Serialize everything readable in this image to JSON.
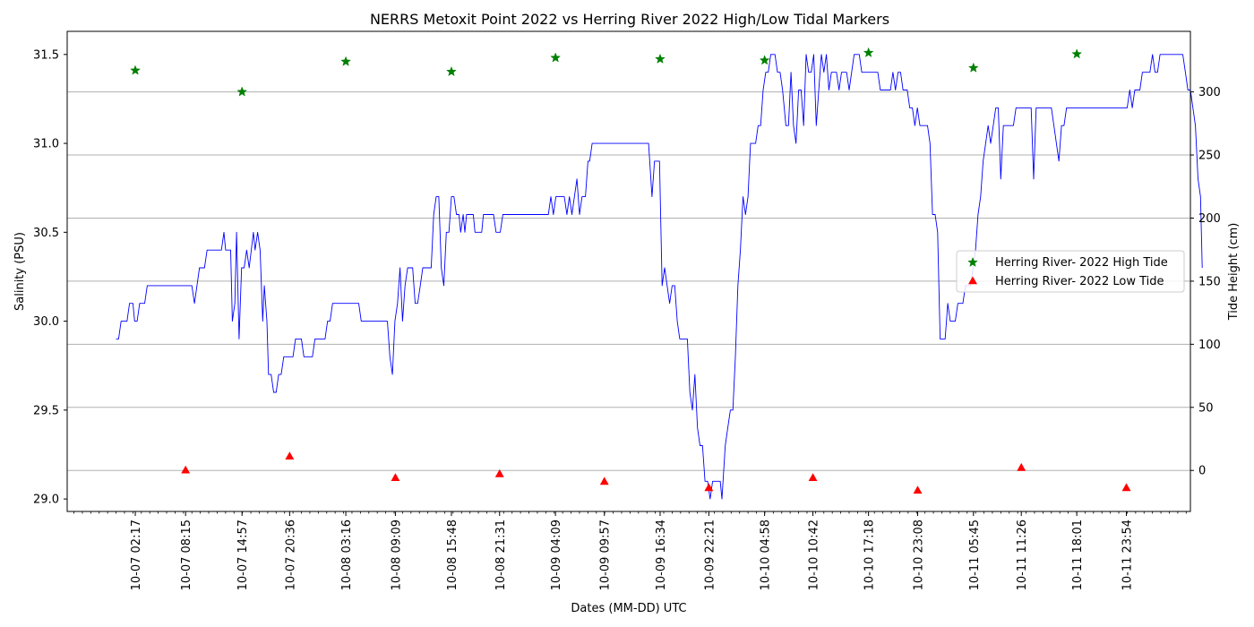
{
  "chart_data": {
    "type": "line",
    "title": "NERRS Metoxit Point 2022 vs Herring River 2022 High/Low Tidal Markers",
    "xlabel": "Dates (MM-DD) UTC",
    "ylabel_left": "Salinity (PSU)",
    "ylabel_right": "Tide Height (cm)",
    "x_ticks": [
      "10-07 02:17",
      "10-07 08:15",
      "10-07 14:57",
      "10-07 20:36",
      "10-08 03:16",
      "10-08 09:09",
      "10-08 15:48",
      "10-08 21:31",
      "10-09 04:09",
      "10-09 09:57",
      "10-09 16:34",
      "10-09 22:21",
      "10-10 04:58",
      "10-10 10:42",
      "10-10 17:18",
      "10-10 23:08",
      "10-11 05:45",
      "10-11 11:26",
      "10-11 18:01",
      "10-11 23:54"
    ],
    "x_tick_hours": [
      2.283,
      8.25,
      14.95,
      20.6,
      27.267,
      33.15,
      39.8,
      45.517,
      52.15,
      57.95,
      64.567,
      70.35,
      76.967,
      82.7,
      89.3,
      95.133,
      101.75,
      107.433,
      114.017,
      119.9
    ],
    "x_range_hours": [
      -5.8,
      127.5
    ],
    "x_origin_label": "10-07 00:00",
    "y_left_ticks": [
      29.0,
      29.5,
      30.0,
      30.5,
      31.0,
      31.5
    ],
    "y_left_range": [
      28.93,
      31.63
    ],
    "y_right_ticks": [
      0,
      50,
      100,
      150,
      200,
      250,
      300
    ],
    "y_right_range": [
      -32.5,
      348
    ],
    "grid": "right-axis horizontal",
    "legend_position": "right",
    "salinity_color": "#0000ff",
    "high_color": "#008000",
    "low_color": "#ff0000",
    "series": [
      {
        "name": "",
        "axis": "left",
        "points": [
          [
            0.0,
            29.9
          ],
          [
            0.3,
            29.9
          ],
          [
            0.6,
            30.0
          ],
          [
            1.3,
            30.0
          ],
          [
            1.6,
            30.1
          ],
          [
            2.0,
            30.1
          ],
          [
            2.2,
            30.0
          ],
          [
            2.5,
            30.0
          ],
          [
            2.8,
            30.1
          ],
          [
            3.4,
            30.1
          ],
          [
            3.7,
            30.2
          ],
          [
            7.0,
            30.2
          ],
          [
            8.5,
            30.2
          ],
          [
            9.0,
            30.2
          ],
          [
            9.3,
            30.1
          ],
          [
            9.6,
            30.2
          ],
          [
            9.9,
            30.3
          ],
          [
            10.5,
            30.3
          ],
          [
            10.8,
            30.4
          ],
          [
            12.5,
            30.4
          ],
          [
            12.8,
            30.5
          ],
          [
            13.0,
            30.4
          ],
          [
            13.6,
            30.4
          ],
          [
            13.8,
            30.0
          ],
          [
            14.1,
            30.1
          ],
          [
            14.3,
            30.5
          ],
          [
            14.6,
            29.9
          ],
          [
            14.9,
            30.3
          ],
          [
            15.2,
            30.3
          ],
          [
            15.5,
            30.4
          ],
          [
            15.8,
            30.3
          ],
          [
            16.3,
            30.5
          ],
          [
            16.5,
            30.4
          ],
          [
            16.8,
            30.5
          ],
          [
            17.1,
            30.4
          ],
          [
            17.4,
            30.0
          ],
          [
            17.6,
            30.2
          ],
          [
            17.9,
            30.0
          ],
          [
            18.1,
            29.7
          ],
          [
            18.4,
            29.7
          ],
          [
            18.7,
            29.6
          ],
          [
            19.0,
            29.6
          ],
          [
            19.3,
            29.7
          ],
          [
            19.6,
            29.7
          ],
          [
            19.9,
            29.8
          ],
          [
            21.0,
            29.8
          ],
          [
            21.3,
            29.9
          ],
          [
            22.0,
            29.9
          ],
          [
            22.3,
            29.8
          ],
          [
            23.3,
            29.8
          ],
          [
            23.6,
            29.9
          ],
          [
            24.8,
            29.9
          ],
          [
            25.1,
            30.0
          ],
          [
            25.4,
            30.0
          ],
          [
            25.7,
            30.1
          ],
          [
            28.8,
            30.1
          ],
          [
            29.1,
            30.0
          ],
          [
            31.4,
            30.0
          ],
          [
            32.2,
            30.0
          ],
          [
            32.5,
            29.8
          ],
          [
            32.8,
            29.7
          ],
          [
            33.1,
            30.0
          ],
          [
            33.4,
            30.1
          ],
          [
            33.7,
            30.3
          ],
          [
            34.0,
            30.0
          ],
          [
            34.3,
            30.2
          ],
          [
            34.6,
            30.3
          ],
          [
            35.2,
            30.3
          ],
          [
            35.5,
            30.1
          ],
          [
            35.8,
            30.1
          ],
          [
            36.1,
            30.2
          ],
          [
            36.4,
            30.3
          ],
          [
            37.4,
            30.3
          ],
          [
            37.7,
            30.6
          ],
          [
            38.0,
            30.7
          ],
          [
            38.3,
            30.7
          ],
          [
            38.6,
            30.3
          ],
          [
            38.9,
            30.2
          ],
          [
            39.2,
            30.5
          ],
          [
            39.5,
            30.5
          ],
          [
            39.8,
            30.7
          ],
          [
            40.1,
            30.7
          ],
          [
            40.4,
            30.6
          ],
          [
            40.7,
            30.6
          ],
          [
            40.9,
            30.5
          ],
          [
            41.2,
            30.6
          ],
          [
            41.4,
            30.5
          ],
          [
            41.6,
            30.6
          ],
          [
            42.4,
            30.6
          ],
          [
            42.6,
            30.5
          ],
          [
            43.4,
            30.5
          ],
          [
            43.6,
            30.6
          ],
          [
            44.8,
            30.6
          ],
          [
            45.1,
            30.5
          ],
          [
            45.6,
            30.5
          ],
          [
            45.9,
            30.6
          ],
          [
            51.3,
            30.6
          ],
          [
            51.6,
            30.7
          ],
          [
            51.9,
            30.6
          ],
          [
            52.2,
            30.7
          ],
          [
            53.2,
            30.7
          ],
          [
            53.5,
            30.6
          ],
          [
            53.8,
            30.7
          ],
          [
            54.1,
            30.6
          ],
          [
            54.4,
            30.7
          ],
          [
            54.7,
            30.8
          ],
          [
            55.0,
            30.6
          ],
          [
            55.3,
            30.7
          ],
          [
            55.7,
            30.7
          ],
          [
            56.0,
            30.9
          ],
          [
            56.2,
            30.9
          ],
          [
            56.5,
            31.0
          ],
          [
            63.2,
            31.0
          ],
          [
            63.6,
            30.7
          ],
          [
            63.9,
            30.9
          ],
          [
            64.5,
            30.9
          ],
          [
            64.8,
            30.2
          ],
          [
            65.1,
            30.3
          ],
          [
            65.4,
            30.2
          ],
          [
            65.7,
            30.1
          ],
          [
            66.0,
            30.2
          ],
          [
            66.3,
            30.2
          ],
          [
            66.6,
            30.0
          ],
          [
            66.9,
            29.9
          ],
          [
            67.8,
            29.9
          ],
          [
            68.1,
            29.6
          ],
          [
            68.4,
            29.5
          ],
          [
            68.7,
            29.7
          ],
          [
            69.0,
            29.4
          ],
          [
            69.3,
            29.3
          ],
          [
            69.6,
            29.3
          ],
          [
            69.9,
            29.1
          ],
          [
            70.2,
            29.1
          ],
          [
            70.5,
            29.0
          ],
          [
            70.8,
            29.1
          ],
          [
            71.7,
            29.1
          ],
          [
            71.9,
            29.0
          ],
          [
            72.3,
            29.3
          ],
          [
            72.6,
            29.4
          ],
          [
            72.9,
            29.5
          ],
          [
            73.2,
            29.5
          ],
          [
            73.5,
            29.8
          ],
          [
            73.8,
            30.2
          ],
          [
            74.1,
            30.4
          ],
          [
            74.4,
            30.7
          ],
          [
            74.7,
            30.6
          ],
          [
            75.0,
            30.7
          ],
          [
            75.3,
            31.0
          ],
          [
            75.9,
            31.0
          ],
          [
            76.2,
            31.1
          ],
          [
            76.5,
            31.1
          ],
          [
            76.8,
            31.3
          ],
          [
            77.1,
            31.4
          ],
          [
            77.4,
            31.4
          ],
          [
            77.7,
            31.5
          ],
          [
            78.2,
            31.5
          ],
          [
            78.5,
            31.4
          ],
          [
            78.8,
            31.4
          ],
          [
            79.1,
            31.3
          ],
          [
            79.5,
            31.1
          ],
          [
            79.8,
            31.1
          ],
          [
            80.1,
            31.4
          ],
          [
            80.4,
            31.1
          ],
          [
            80.7,
            31.0
          ],
          [
            81.0,
            31.3
          ],
          [
            81.3,
            31.3
          ],
          [
            81.6,
            31.1
          ],
          [
            81.9,
            31.5
          ],
          [
            82.2,
            31.4
          ],
          [
            82.5,
            31.4
          ],
          [
            82.8,
            31.5
          ],
          [
            83.1,
            31.1
          ],
          [
            83.4,
            31.3
          ],
          [
            83.7,
            31.5
          ],
          [
            84.0,
            31.4
          ],
          [
            84.3,
            31.5
          ],
          [
            84.6,
            31.3
          ],
          [
            84.9,
            31.4
          ],
          [
            85.5,
            31.4
          ],
          [
            85.8,
            31.3
          ],
          [
            86.1,
            31.4
          ],
          [
            86.7,
            31.4
          ],
          [
            87.0,
            31.3
          ],
          [
            87.3,
            31.4
          ],
          [
            87.6,
            31.5
          ],
          [
            88.2,
            31.5
          ],
          [
            88.5,
            31.4
          ],
          [
            90.4,
            31.4
          ],
          [
            90.7,
            31.3
          ],
          [
            91.9,
            31.3
          ],
          [
            92.2,
            31.4
          ],
          [
            92.5,
            31.3
          ],
          [
            92.8,
            31.4
          ],
          [
            93.1,
            31.4
          ],
          [
            93.4,
            31.3
          ],
          [
            93.9,
            31.3
          ],
          [
            94.2,
            31.2
          ],
          [
            94.5,
            31.2
          ],
          [
            94.8,
            31.1
          ],
          [
            95.1,
            31.2
          ],
          [
            95.4,
            31.1
          ],
          [
            96.3,
            31.1
          ],
          [
            96.6,
            31.0
          ],
          [
            96.9,
            30.6
          ],
          [
            97.2,
            30.6
          ],
          [
            97.5,
            30.5
          ],
          [
            97.8,
            29.9
          ],
          [
            98.4,
            29.9
          ],
          [
            98.7,
            30.1
          ],
          [
            99.0,
            30.0
          ],
          [
            99.6,
            30.0
          ],
          [
            99.9,
            30.1
          ],
          [
            100.5,
            30.1
          ],
          [
            100.8,
            30.2
          ],
          [
            101.4,
            30.2
          ],
          [
            101.7,
            30.3
          ],
          [
            102.0,
            30.4
          ],
          [
            102.3,
            30.6
          ],
          [
            102.6,
            30.7
          ],
          [
            102.9,
            30.9
          ],
          [
            103.2,
            31.0
          ],
          [
            103.5,
            31.1
          ],
          [
            103.8,
            31.0
          ],
          [
            104.1,
            31.1
          ],
          [
            104.4,
            31.2
          ],
          [
            104.7,
            31.2
          ],
          [
            105.0,
            30.8
          ],
          [
            105.3,
            31.1
          ],
          [
            106.5,
            31.1
          ],
          [
            106.8,
            31.2
          ],
          [
            108.6,
            31.2
          ],
          [
            108.9,
            30.8
          ],
          [
            109.2,
            31.2
          ],
          [
            111.0,
            31.2
          ],
          [
            111.3,
            31.1
          ],
          [
            111.9,
            30.9
          ],
          [
            112.2,
            31.1
          ],
          [
            112.5,
            31.1
          ],
          [
            112.8,
            31.2
          ],
          [
            120.0,
            31.2
          ],
          [
            120.3,
            31.3
          ],
          [
            120.6,
            31.2
          ],
          [
            120.9,
            31.3
          ],
          [
            121.5,
            31.3
          ],
          [
            121.8,
            31.4
          ],
          [
            122.7,
            31.4
          ],
          [
            123.0,
            31.5
          ],
          [
            123.3,
            31.4
          ],
          [
            123.6,
            31.4
          ],
          [
            123.9,
            31.5
          ],
          [
            126.6,
            31.5
          ],
          [
            126.9,
            31.4
          ],
          [
            127.2,
            31.3
          ],
          [
            127.5,
            31.3
          ],
          [
            127.8,
            31.2
          ],
          [
            128.1,
            31.1
          ],
          [
            128.4,
            30.8
          ],
          [
            128.7,
            30.7
          ],
          [
            128.9,
            30.3
          ]
        ]
      },
      {
        "name": "Herring River- 2022 High Tide",
        "axis": "right",
        "marker": "star",
        "points": [
          [
            2.283,
            317
          ],
          [
            14.95,
            300
          ],
          [
            27.267,
            324
          ],
          [
            39.8,
            316
          ],
          [
            52.15,
            327
          ],
          [
            64.567,
            326
          ],
          [
            76.967,
            325
          ],
          [
            89.3,
            331
          ],
          [
            101.75,
            319
          ],
          [
            114.017,
            330
          ]
        ]
      },
      {
        "name": "Herring River- 2022 Low Tide",
        "axis": "right",
        "marker": "triangle",
        "points": [
          [
            8.25,
            0
          ],
          [
            20.6,
            11
          ],
          [
            33.15,
            -6
          ],
          [
            45.517,
            -3
          ],
          [
            57.95,
            -9
          ],
          [
            70.35,
            -14
          ],
          [
            82.7,
            -6
          ],
          [
            95.133,
            -16
          ],
          [
            107.433,
            2
          ],
          [
            119.9,
            -14
          ]
        ]
      }
    ]
  }
}
